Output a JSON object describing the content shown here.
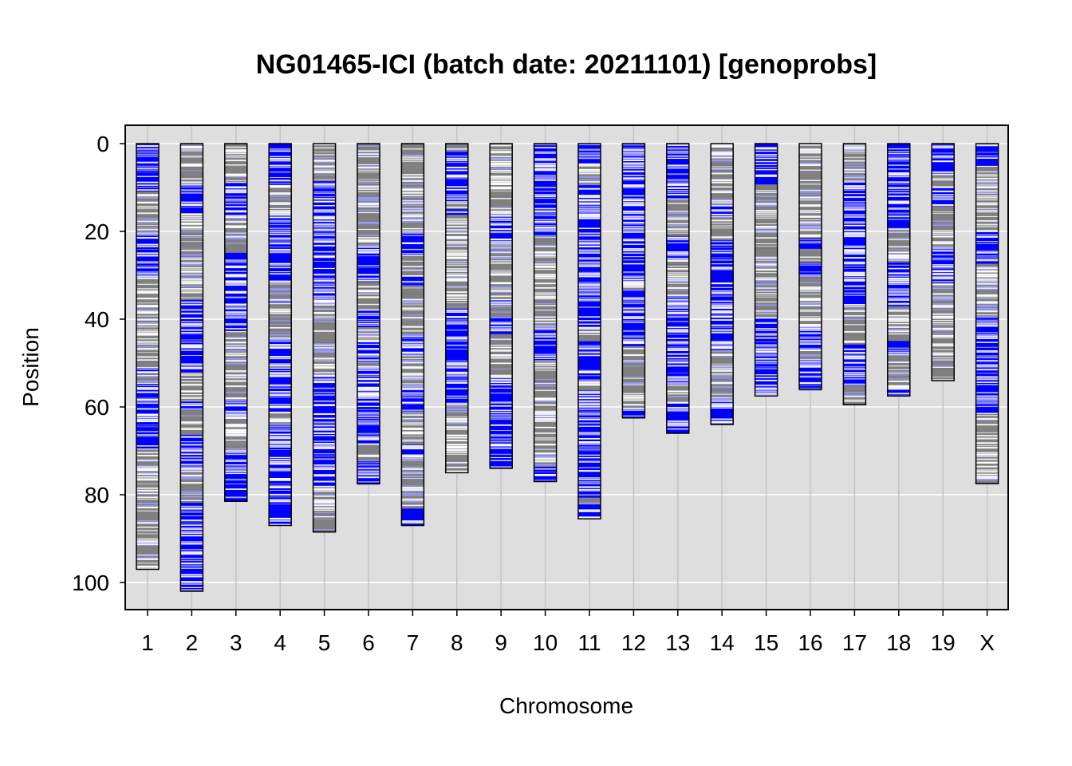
{
  "chart_data": {
    "type": "genotype-ideogram",
    "title": "NG01465-ICI (batch date: 20211101) [genoprobs]",
    "xlabel": "Chromosome",
    "ylabel": "Position",
    "ylim": [
      0,
      105
    ],
    "y_reversed": true,
    "y_ticks": [
      "0",
      "20",
      "40",
      "60",
      "80",
      "100"
    ],
    "grid": true,
    "chromosomes": [
      {
        "name": "1",
        "length": 97
      },
      {
        "name": "2",
        "length": 102
      },
      {
        "name": "3",
        "length": 81.5
      },
      {
        "name": "4",
        "length": 87
      },
      {
        "name": "5",
        "length": 88.5
      },
      {
        "name": "6",
        "length": 77.5
      },
      {
        "name": "7",
        "length": 87
      },
      {
        "name": "8",
        "length": 75
      },
      {
        "name": "9",
        "length": 74
      },
      {
        "name": "10",
        "length": 77
      },
      {
        "name": "11",
        "length": 85.5
      },
      {
        "name": "12",
        "length": 62.5
      },
      {
        "name": "13",
        "length": 66
      },
      {
        "name": "14",
        "length": 64
      },
      {
        "name": "15",
        "length": 57.5
      },
      {
        "name": "16",
        "length": 56
      },
      {
        "name": "17",
        "length": 59.5
      },
      {
        "name": "18",
        "length": 57.5
      },
      {
        "name": "19",
        "length": 54
      },
      {
        "name": "X",
        "length": 77.5
      }
    ],
    "colors": {
      "panel_background": "#dedede",
      "grid": "#ffffff",
      "genotype_a": "#0000ff",
      "genotype_b": "#808080",
      "marker_gap": "#ffffff",
      "outline": "#000000"
    }
  }
}
